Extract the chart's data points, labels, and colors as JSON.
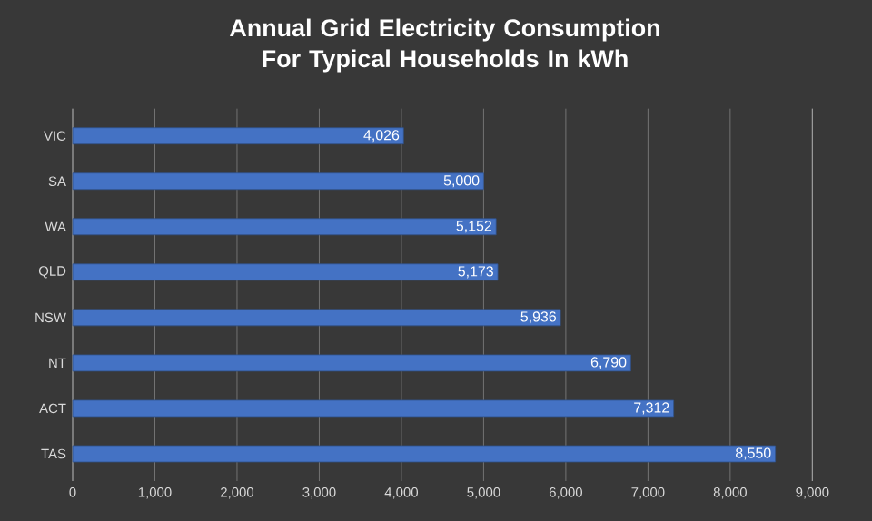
{
  "chart_data": {
    "type": "bar",
    "orientation": "horizontal",
    "title": "Annual Grid Electricity Consumption For Typical Households In kWh",
    "categories": [
      "VIC",
      "SA",
      "WA",
      "QLD",
      "NSW",
      "NT",
      "ACT",
      "TAS"
    ],
    "values": [
      4026,
      5000,
      5152,
      5173,
      5936,
      6790,
      7312,
      8550
    ],
    "value_labels": [
      "4,026",
      "5,000",
      "5,152",
      "5,173",
      "5,936",
      "6,790",
      "7,312",
      "8,550"
    ],
    "color": "#4472c4",
    "xlim": [
      0,
      9000
    ],
    "xticks": [
      0,
      {
        "value": 1000,
        "label": "1,000"
      },
      {
        "value": 2000,
        "label": "2,000"
      },
      {
        "value": 3000,
        "label": "3,000"
      },
      {
        "value": 4000,
        "label": "4,000"
      },
      {
        "value": 5000,
        "label": "5,000"
      },
      {
        "value": 6000,
        "label": "6,000"
      },
      {
        "value": 7000,
        "label": "7,000"
      },
      {
        "value": 8000,
        "label": "8,000"
      },
      {
        "value": 9000,
        "label": "9,000"
      }
    ],
    "grid": "x"
  }
}
